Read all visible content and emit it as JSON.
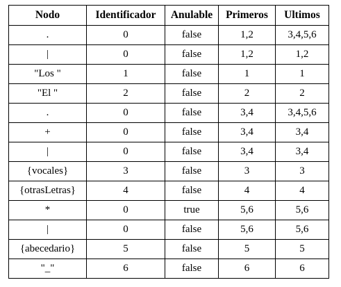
{
  "table": {
    "headers": [
      "Nodo",
      "Identificador",
      "Anulable",
      "Primeros",
      "Ultimos"
    ],
    "rows": [
      {
        "nodo": ".",
        "identificador": "0",
        "anulable": "false",
        "primeros": "1,2",
        "ultimos": "3,4,5,6"
      },
      {
        "nodo": "|",
        "identificador": "0",
        "anulable": "false",
        "primeros": "1,2",
        "ultimos": "1,2"
      },
      {
        "nodo": "\"Los \"",
        "identificador": "1",
        "anulable": "false",
        "primeros": "1",
        "ultimos": "1"
      },
      {
        "nodo": "\"El \"",
        "identificador": "2",
        "anulable": "false",
        "primeros": "2",
        "ultimos": "2"
      },
      {
        "nodo": ".",
        "identificador": "0",
        "anulable": "false",
        "primeros": "3,4",
        "ultimos": "3,4,5,6"
      },
      {
        "nodo": "+",
        "identificador": "0",
        "anulable": "false",
        "primeros": "3,4",
        "ultimos": "3,4"
      },
      {
        "nodo": "|",
        "identificador": "0",
        "anulable": "false",
        "primeros": "3,4",
        "ultimos": "3,4"
      },
      {
        "nodo": "{vocales}",
        "identificador": "3",
        "anulable": "false",
        "primeros": "3",
        "ultimos": "3"
      },
      {
        "nodo": "{otrasLetras}",
        "identificador": "4",
        "anulable": "false",
        "primeros": "4",
        "ultimos": "4"
      },
      {
        "nodo": "*",
        "identificador": "0",
        "anulable": "true",
        "primeros": "5,6",
        "ultimos": "5,6"
      },
      {
        "nodo": "|",
        "identificador": "0",
        "anulable": "false",
        "primeros": "5,6",
        "ultimos": "5,6"
      },
      {
        "nodo": "{abecedario}",
        "identificador": "5",
        "anulable": "false",
        "primeros": "5",
        "ultimos": "5"
      },
      {
        "nodo": "\"_\"",
        "identificador": "6",
        "anulable": "false",
        "primeros": "6",
        "ultimos": "6"
      }
    ]
  }
}
